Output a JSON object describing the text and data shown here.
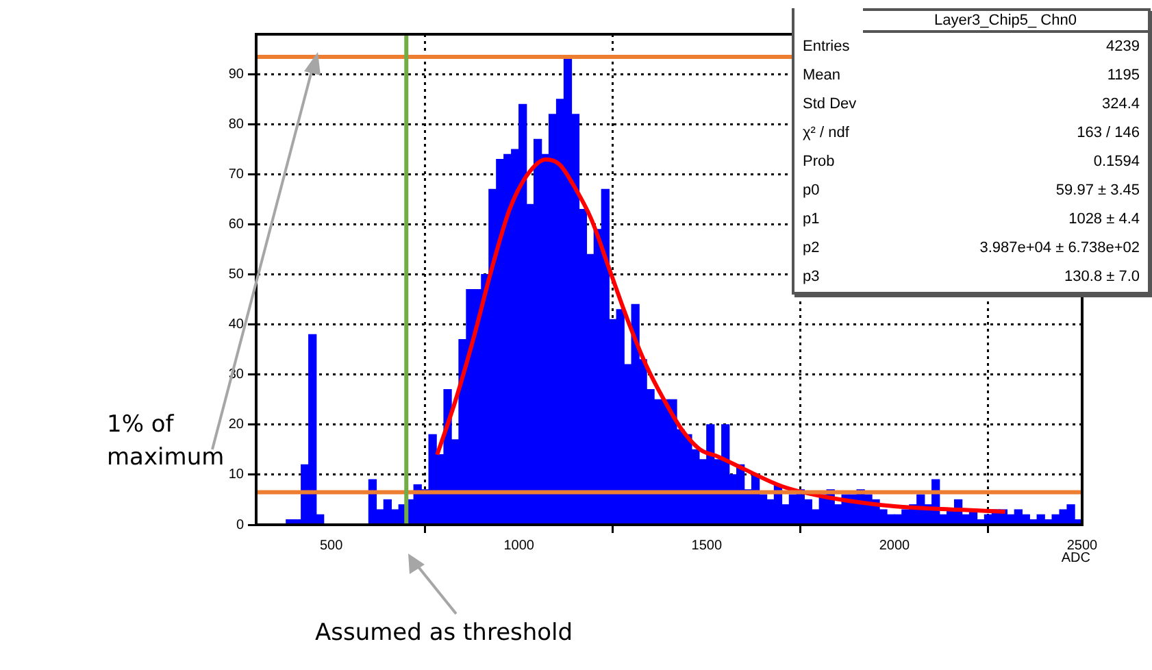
{
  "chart_data": {
    "type": "histogram",
    "title": "Layer3_Chip5_ Chn0",
    "xlabel": "ADC",
    "bins": [
      300,
      320,
      340,
      360,
      380,
      400,
      420,
      440,
      460,
      480,
      500,
      520,
      540,
      560,
      580,
      600,
      620,
      640,
      660,
      680,
      700,
      720,
      740,
      760,
      780,
      800,
      820,
      840,
      860,
      880,
      900,
      920,
      940,
      960,
      980,
      1000,
      1020,
      1040,
      1060,
      1080,
      1100,
      1120,
      1140,
      1160,
      1180,
      1200,
      1220,
      1240,
      1260,
      1280,
      1300,
      1320,
      1340,
      1360,
      1380,
      1400,
      1420,
      1440,
      1460,
      1480,
      1500,
      1520,
      1540,
      1560,
      1580,
      1600,
      1620,
      1640,
      1660,
      1680,
      1700,
      1720,
      1740,
      1760,
      1780,
      1800,
      1820,
      1840,
      1860,
      1880,
      1900,
      1920,
      1940,
      1960,
      1980,
      2000,
      2020,
      2040,
      2060,
      2080,
      2100,
      2120,
      2140,
      2160,
      2180,
      2200,
      2220,
      2240,
      2260,
      2280,
      2300,
      2320,
      2340,
      2360,
      2380,
      2400,
      2420,
      2440,
      2460,
      2480,
      2500
    ],
    "values": [
      0,
      0,
      0,
      0,
      1,
      1,
      12,
      38,
      2,
      0,
      0,
      0,
      0,
      0,
      0,
      9,
      3,
      5,
      3,
      4,
      5,
      8,
      7,
      18,
      14,
      27,
      17,
      37,
      47,
      47,
      50,
      67,
      73,
      74,
      75,
      84,
      64,
      77,
      74,
      82,
      85,
      93,
      82,
      63,
      54,
      59,
      67,
      41,
      43,
      32,
      44,
      33,
      27,
      25,
      25,
      25,
      19,
      18,
      15,
      13,
      20,
      13,
      20,
      10,
      12,
      7,
      10,
      6,
      5,
      8,
      4,
      6,
      7,
      5,
      3,
      6,
      7,
      4,
      6,
      6,
      7,
      6,
      5,
      3,
      2,
      2,
      3,
      4,
      6,
      4,
      9,
      2,
      3,
      5,
      2,
      3,
      1,
      2,
      3,
      3,
      2,
      3,
      2,
      1,
      2,
      1,
      2,
      3,
      4,
      1
    ],
    "color": "#0000ff",
    "series": [
      {
        "type": "line",
        "color": "#ff0000",
        "x": [
          782,
          830,
          878,
          927,
          975,
          1023,
          1072,
          1108,
          1144,
          1193,
          1241,
          1289,
          1338,
          1386,
          1434,
          1483,
          1531,
          1603,
          1700,
          1820,
          2000,
          2174,
          2295
        ],
        "values": [
          14,
          24.6,
          37,
          51,
          63,
          70,
          73,
          72,
          68,
          61,
          51,
          41,
          32,
          25,
          19,
          15,
          13.6,
          11,
          7.7,
          5.5,
          3.7,
          3,
          2.6
        ]
      }
    ],
    "xlim": [
      300,
      2500
    ],
    "ylim": [
      0,
      98
    ],
    "xticks": [
      500,
      1000,
      1500,
      2000,
      2500
    ],
    "yticks": [
      0,
      10,
      20,
      30,
      40,
      50,
      60,
      70,
      80,
      90
    ],
    "grid": true,
    "legend": false,
    "ref_lines": [
      {
        "axis": "y",
        "value": 93.5,
        "color": "#ed7d31"
      },
      {
        "axis": "y",
        "value": 6.5,
        "color": "#ed7d31"
      },
      {
        "axis": "x",
        "value": 700,
        "color": "#70ad47"
      }
    ],
    "annotations": [
      "1% of maximum",
      "Assumed as threshold",
      "Entries",
      "4239",
      "Mean",
      "1195",
      "Std Dev",
      "324.4",
      "χ² / ndf",
      "163 / 146",
      "Prob",
      "0.1594",
      "p0",
      "59.97 ± 3.45",
      "p1",
      "1028 ± 4.4",
      "p2",
      "3.987e+04 ± 6.738e+02",
      "p3",
      "130.8 ± 7.0"
    ]
  }
}
